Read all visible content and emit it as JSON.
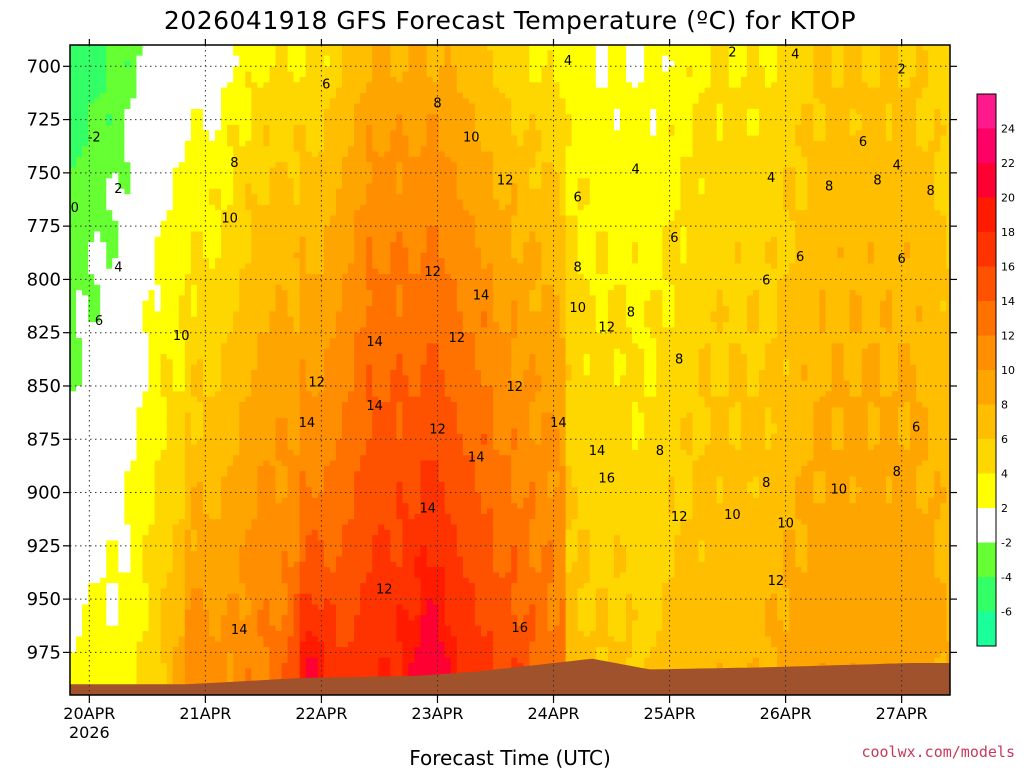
{
  "chart_data": {
    "type": "heatmap",
    "title": "2026041918 GFS Forecast Temperature (ºC) for KTOP",
    "xlabel": "Forecast Time (UTC)",
    "ylabel": "",
    "credit": "coolwx.com/models",
    "y_axis": {
      "quantity": "pressure (hPa)",
      "range": [
        690,
        995
      ],
      "reversed": true,
      "ticks": [
        "700",
        "725",
        "750",
        "775",
        "800",
        "825",
        "850",
        "875",
        "900",
        "925",
        "950",
        "975"
      ]
    },
    "x_axis": {
      "range": [
        "2026-04-19T20:00Z",
        "2026-04-27T10:00Z"
      ],
      "ticks": [
        {
          "label": "20APR",
          "sublabel": "2026",
          "time": "2026-04-20T00:00Z"
        },
        {
          "label": "21APR",
          "sublabel": "",
          "time": "2026-04-21T00:00Z"
        },
        {
          "label": "22APR",
          "sublabel": "",
          "time": "2026-04-22T00:00Z"
        },
        {
          "label": "23APR",
          "sublabel": "",
          "time": "2026-04-23T00:00Z"
        },
        {
          "label": "24APR",
          "sublabel": "",
          "time": "2026-04-24T00:00Z"
        },
        {
          "label": "25APR",
          "sublabel": "",
          "time": "2026-04-25T00:00Z"
        },
        {
          "label": "26APR",
          "sublabel": "",
          "time": "2026-04-26T00:00Z"
        },
        {
          "label": "27APR",
          "sublabel": "",
          "time": "2026-04-27T00:00Z"
        }
      ]
    },
    "grid": "dotted",
    "colorbar": {
      "placement": "right",
      "labels": [
        "24",
        "22",
        "20",
        "18",
        "16",
        "14",
        "12",
        "10",
        "8",
        "6",
        "4",
        "2",
        "-2",
        "-4",
        "-6"
      ],
      "bins": [
        {
          "min": 24,
          "max": 26,
          "color": "#ff1a8c"
        },
        {
          "min": 22,
          "max": 24,
          "color": "#ff0066"
        },
        {
          "min": 20,
          "max": 22,
          "color": "#ff0033"
        },
        {
          "min": 18,
          "max": 20,
          "color": "#ff1a00"
        },
        {
          "min": 16,
          "max": 18,
          "color": "#ff3300"
        },
        {
          "min": 14,
          "max": 16,
          "color": "#ff5200"
        },
        {
          "min": 12,
          "max": 14,
          "color": "#ff7200"
        },
        {
          "min": 10,
          "max": 12,
          "color": "#ff8f00"
        },
        {
          "min": 8,
          "max": 10,
          "color": "#ffa500"
        },
        {
          "min": 6,
          "max": 8,
          "color": "#ffbe00"
        },
        {
          "min": 4,
          "max": 6,
          "color": "#ffd700"
        },
        {
          "min": 2,
          "max": 4,
          "color": "#ffff00"
        },
        {
          "min": -2,
          "max": 2,
          "color": "#ffffff"
        },
        {
          "min": -4,
          "max": -2,
          "color": "#66ff33"
        },
        {
          "min": -6,
          "max": -4,
          "color": "#33ff66"
        },
        {
          "min": -8,
          "max": -6,
          "color": "#1aff99"
        }
      ]
    },
    "terrain_color": "#a0522d",
    "freezing_line_color": "#cc0066",
    "contour_labels": [
      {
        "text": "0",
        "time": "2026-04-19T21:00Z",
        "p": 766
      },
      {
        "text": "-2",
        "time": "2026-04-20T01:00Z",
        "p": 733
      },
      {
        "text": "2",
        "time": "2026-04-20T06:00Z",
        "p": 757
      },
      {
        "text": "4",
        "time": "2026-04-20T06:00Z",
        "p": 794
      },
      {
        "text": "6",
        "time": "2026-04-20T02:00Z",
        "p": 819
      },
      {
        "text": "10",
        "time": "2026-04-20T19:00Z",
        "p": 826
      },
      {
        "text": "8",
        "time": "2026-04-21T06:00Z",
        "p": 745
      },
      {
        "text": "10",
        "time": "2026-04-21T05:00Z",
        "p": 771
      },
      {
        "text": "6",
        "time": "2026-04-22T01:00Z",
        "p": 708
      },
      {
        "text": "12",
        "time": "2026-04-21T23:00Z",
        "p": 848
      },
      {
        "text": "14",
        "time": "2026-04-21T21:00Z",
        "p": 867
      },
      {
        "text": "14",
        "time": "2026-04-21T07:00Z",
        "p": 964
      },
      {
        "text": "14",
        "time": "2026-04-22T11:00Z",
        "p": 829
      },
      {
        "text": "14",
        "time": "2026-04-22T11:00Z",
        "p": 859
      },
      {
        "text": "12",
        "time": "2026-04-22T23:00Z",
        "p": 796
      },
      {
        "text": "8",
        "time": "2026-04-23T00:00Z",
        "p": 717
      },
      {
        "text": "10",
        "time": "2026-04-23T07:00Z",
        "p": 733
      },
      {
        "text": "12",
        "time": "2026-04-23T14:00Z",
        "p": 753
      },
      {
        "text": "14",
        "time": "2026-04-23T09:00Z",
        "p": 807
      },
      {
        "text": "12",
        "time": "2026-04-23T04:00Z",
        "p": 827
      },
      {
        "text": "12",
        "time": "2026-04-23T16:00Z",
        "p": 850
      },
      {
        "text": "12",
        "time": "2026-04-23T00:00Z",
        "p": 870
      },
      {
        "text": "14",
        "time": "2026-04-23T08:00Z",
        "p": 883
      },
      {
        "text": "14",
        "time": "2026-04-22T22:00Z",
        "p": 907
      },
      {
        "text": "12",
        "time": "2026-04-22T13:00Z",
        "p": 945
      },
      {
        "text": "16",
        "time": "2026-04-23T17:00Z",
        "p": 963
      },
      {
        "text": "4",
        "time": "2026-04-24T03:00Z",
        "p": 697
      },
      {
        "text": "6",
        "time": "2026-04-24T05:00Z",
        "p": 761
      },
      {
        "text": "8",
        "time": "2026-04-24T05:00Z",
        "p": 794
      },
      {
        "text": "10",
        "time": "2026-04-24T05:00Z",
        "p": 813
      },
      {
        "text": "12",
        "time": "2026-04-24T11:00Z",
        "p": 822
      },
      {
        "text": "8",
        "time": "2026-04-24T16:00Z",
        "p": 815
      },
      {
        "text": "14",
        "time": "2026-04-24T01:00Z",
        "p": 867
      },
      {
        "text": "14",
        "time": "2026-04-24T09:00Z",
        "p": 880
      },
      {
        "text": "16",
        "time": "2026-04-24T11:00Z",
        "p": 893
      },
      {
        "text": "4",
        "time": "2026-04-24T17:00Z",
        "p": 748
      },
      {
        "text": "6",
        "time": "2026-04-25T01:00Z",
        "p": 780
      },
      {
        "text": "8",
        "time": "2026-04-25T02:00Z",
        "p": 837
      },
      {
        "text": "8",
        "time": "2026-04-24T22:00Z",
        "p": 880
      },
      {
        "text": "12",
        "time": "2026-04-25T02:00Z",
        "p": 911
      },
      {
        "text": "10",
        "time": "2026-04-25T13:00Z",
        "p": 910
      },
      {
        "text": "2",
        "time": "2026-04-25T13:00Z",
        "p": 693
      },
      {
        "text": "4",
        "time": "2026-04-26T02:00Z",
        "p": 694
      },
      {
        "text": "4",
        "time": "2026-04-25T21:00Z",
        "p": 752
      },
      {
        "text": "6",
        "time": "2026-04-25T20:00Z",
        "p": 800
      },
      {
        "text": "8",
        "time": "2026-04-25T20:00Z",
        "p": 895
      },
      {
        "text": "10",
        "time": "2026-04-26T00:00Z",
        "p": 914
      },
      {
        "text": "12",
        "time": "2026-04-25T22:00Z",
        "p": 941
      },
      {
        "text": "6",
        "time": "2026-04-26T03:00Z",
        "p": 789
      },
      {
        "text": "8",
        "time": "2026-04-26T09:00Z",
        "p": 756
      },
      {
        "text": "6",
        "time": "2026-04-26T16:00Z",
        "p": 735
      },
      {
        "text": "8",
        "time": "2026-04-26T19:00Z",
        "p": 753
      },
      {
        "text": "10",
        "time": "2026-04-26T11:00Z",
        "p": 898
      },
      {
        "text": "8",
        "time": "2026-04-26T23:00Z",
        "p": 890
      },
      {
        "text": "6",
        "time": "2026-04-27T00:00Z",
        "p": 790
      },
      {
        "text": "4",
        "time": "2026-04-26T23:00Z",
        "p": 746
      },
      {
        "text": "2",
        "time": "2026-04-27T00:00Z",
        "p": 701
      },
      {
        "text": "6",
        "time": "2026-04-27T03:00Z",
        "p": 869
      },
      {
        "text": "8",
        "time": "2026-04-27T06:00Z",
        "p": 758
      }
    ]
  }
}
